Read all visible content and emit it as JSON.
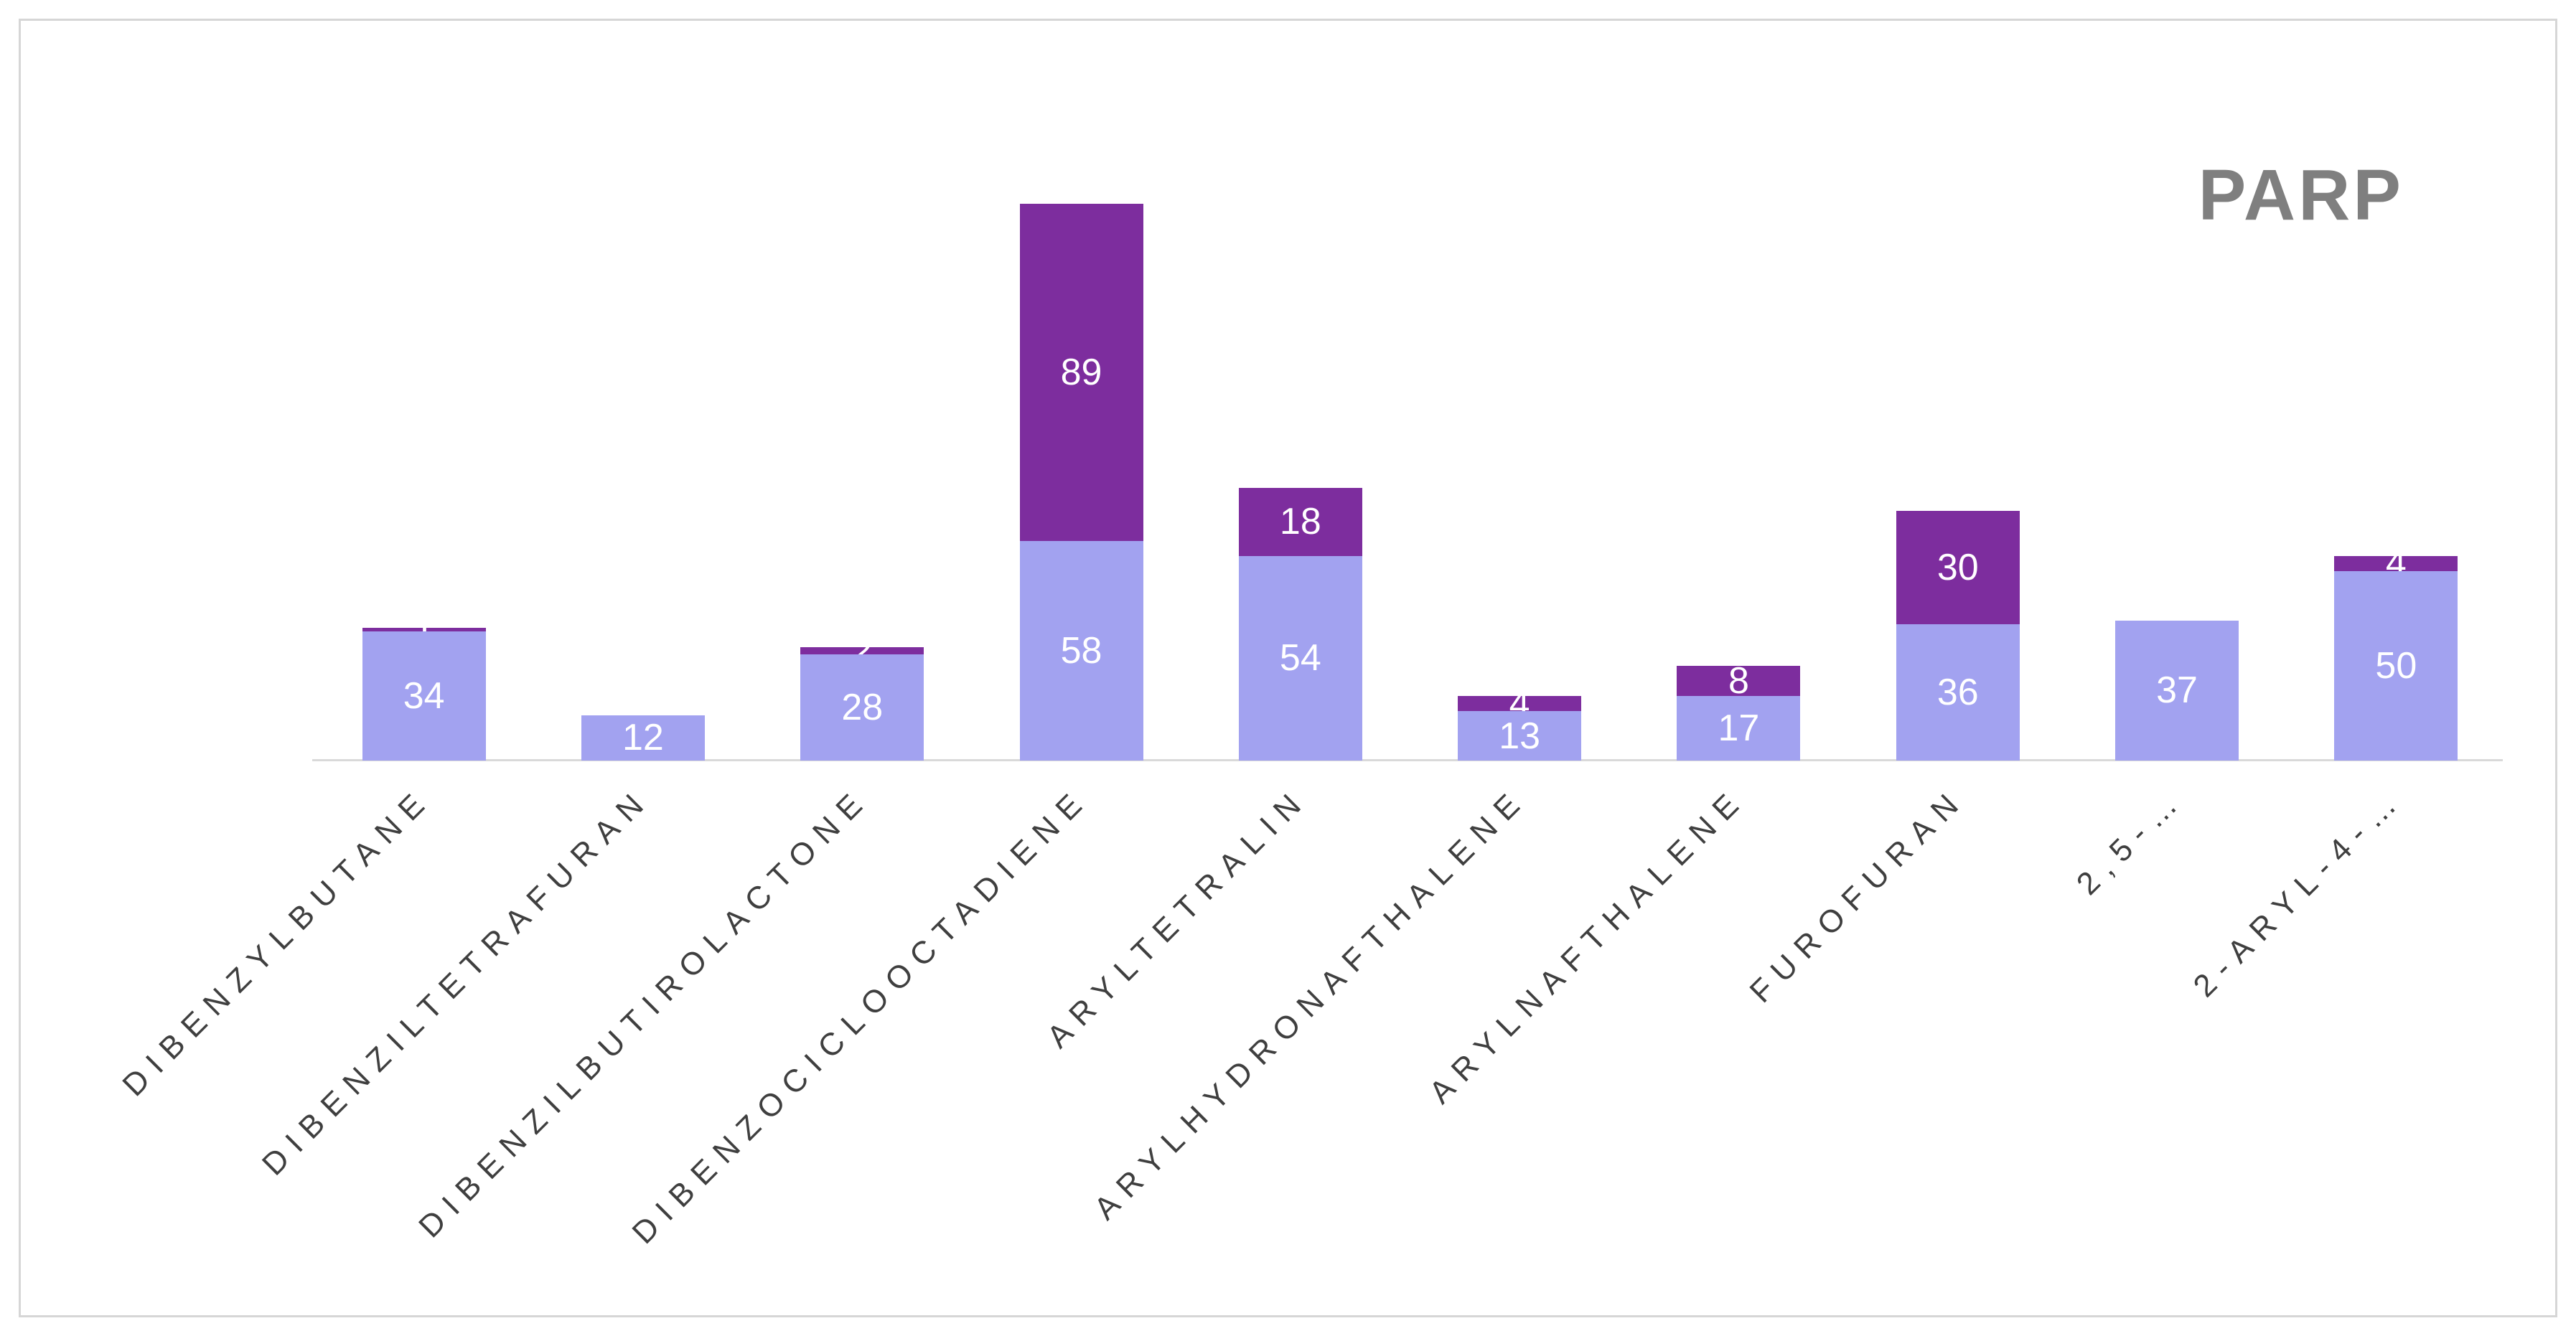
{
  "chart_data": {
    "type": "bar",
    "stacked": true,
    "title": "PARP",
    "categories": [
      "DIBENZYLBUTANE",
      "DIBENZILTETRAFURAN",
      "DIBENZILBUTIROLACTONE",
      "DIBENZOCICLOOCTADIENE",
      "ARYLTETRALIN",
      "ARYLHYDRONAFTHALENE",
      "ARYLNAFTHALENE",
      "FUROFURAN",
      "2,5-…",
      "2-ARYL-4-…"
    ],
    "series": [
      {
        "name": "light-purple-segment",
        "color": "#a2a2f0",
        "values": [
          34,
          12,
          28,
          58,
          54,
          13,
          17,
          36,
          37,
          50
        ]
      },
      {
        "name": "dark-purple-segment",
        "color": "#7d2d9e",
        "values": [
          1,
          0,
          2,
          89,
          18,
          4,
          8,
          30,
          0,
          4
        ]
      }
    ],
    "value_label_color": "#ffffff",
    "title_color": "#7f7f7f",
    "axis_line_color": "#d9d9d9",
    "legend": "none",
    "grid": false,
    "y_axis_visible": false,
    "x_axis_label_rotation_deg": 45
  }
}
